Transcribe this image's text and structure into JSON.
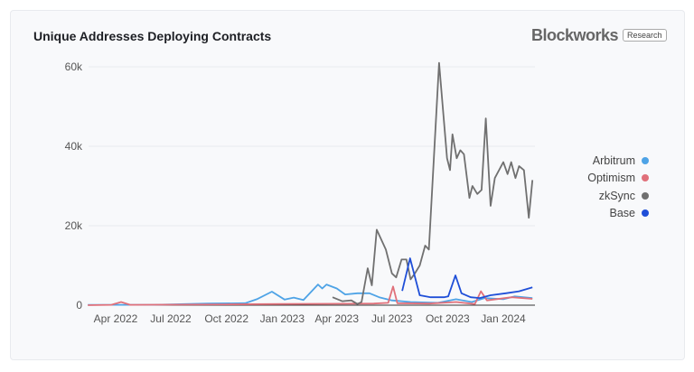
{
  "header": {
    "title": "Unique Addresses Deploying Contracts",
    "logo": "Blockworks",
    "badge": "Research"
  },
  "chart_data": {
    "type": "line",
    "title": "Unique Addresses Deploying Contracts",
    "xlabel": "",
    "ylabel": "",
    "ylim": [
      0,
      60000
    ],
    "yticks": [
      {
        "v": 0,
        "label": "0"
      },
      {
        "v": 20000,
        "label": "20k"
      },
      {
        "v": 40000,
        "label": "40k"
      },
      {
        "v": 60000,
        "label": "60k"
      }
    ],
    "xlim": [
      "2022-02-14",
      "2024-02-20"
    ],
    "xticks": [
      {
        "d": "2022-04-01",
        "label": "Apr 2022"
      },
      {
        "d": "2022-07-01",
        "label": "Jul 2022"
      },
      {
        "d": "2022-10-01",
        "label": "Oct 2022"
      },
      {
        "d": "2023-01-01",
        "label": "Jan 2023"
      },
      {
        "d": "2023-04-01",
        "label": "Apr 2023"
      },
      {
        "d": "2023-07-01",
        "label": "Jul 2023"
      },
      {
        "d": "2023-10-01",
        "label": "Oct 2023"
      },
      {
        "d": "2024-01-01",
        "label": "Jan 2024"
      }
    ],
    "grid": true,
    "legend_position": "right",
    "series": [
      {
        "name": "Arbitrum",
        "color": "#4ea3e6",
        "points": [
          [
            "2022-02-14",
            100
          ],
          [
            "2022-06-01",
            100
          ],
          [
            "2022-09-01",
            400
          ],
          [
            "2022-11-01",
            500
          ],
          [
            "2022-11-20",
            1500
          ],
          [
            "2022-12-15",
            3400
          ],
          [
            "2023-01-05",
            1400
          ],
          [
            "2023-01-20",
            1900
          ],
          [
            "2023-02-05",
            1300
          ],
          [
            "2023-03-01",
            5200
          ],
          [
            "2023-03-08",
            4200
          ],
          [
            "2023-03-15",
            5200
          ],
          [
            "2023-04-01",
            4200
          ],
          [
            "2023-04-15",
            2700
          ],
          [
            "2023-05-05",
            3000
          ],
          [
            "2023-05-25",
            3000
          ],
          [
            "2023-06-10",
            2000
          ],
          [
            "2023-07-01",
            1200
          ],
          [
            "2023-08-01",
            800
          ],
          [
            "2023-09-15",
            600
          ],
          [
            "2023-10-15",
            1500
          ],
          [
            "2023-11-10",
            800
          ],
          [
            "2023-12-01",
            1800
          ],
          [
            "2024-01-01",
            1500
          ],
          [
            "2024-01-20",
            2200
          ],
          [
            "2024-02-18",
            1800
          ]
        ]
      },
      {
        "name": "Optimism",
        "color": "#e0707a",
        "points": [
          [
            "2022-02-14",
            0
          ],
          [
            "2022-03-25",
            100
          ],
          [
            "2022-04-10",
            800
          ],
          [
            "2022-04-25",
            100
          ],
          [
            "2022-10-01",
            200
          ],
          [
            "2023-01-01",
            300
          ],
          [
            "2023-06-01",
            400
          ],
          [
            "2023-06-25",
            600
          ],
          [
            "2023-07-03",
            4700
          ],
          [
            "2023-07-10",
            500
          ],
          [
            "2023-09-01",
            400
          ],
          [
            "2023-10-15",
            800
          ],
          [
            "2023-11-15",
            300
          ],
          [
            "2023-11-25",
            3500
          ],
          [
            "2023-12-05",
            1200
          ],
          [
            "2024-01-15",
            2000
          ],
          [
            "2024-02-18",
            1600
          ]
        ]
      },
      {
        "name": "zkSync",
        "color": "#707070",
        "points": [
          [
            "2023-03-25",
            2000
          ],
          [
            "2023-04-10",
            1000
          ],
          [
            "2023-04-25",
            1200
          ],
          [
            "2023-05-05",
            300
          ],
          [
            "2023-05-12",
            800
          ],
          [
            "2023-05-22",
            9300
          ],
          [
            "2023-05-29",
            5000
          ],
          [
            "2023-06-06",
            19000
          ],
          [
            "2023-06-21",
            14000
          ],
          [
            "2023-07-01",
            8000
          ],
          [
            "2023-07-08",
            7000
          ],
          [
            "2023-07-17",
            11500
          ],
          [
            "2023-07-25",
            11500
          ],
          [
            "2023-08-01",
            6500
          ],
          [
            "2023-08-08",
            8000
          ],
          [
            "2023-08-16",
            10000
          ],
          [
            "2023-08-25",
            15000
          ],
          [
            "2023-08-31",
            14000
          ],
          [
            "2023-09-17",
            61000
          ],
          [
            "2023-09-30",
            37000
          ],
          [
            "2023-10-05",
            34000
          ],
          [
            "2023-10-09",
            43000
          ],
          [
            "2023-10-16",
            37000
          ],
          [
            "2023-10-22",
            39000
          ],
          [
            "2023-10-28",
            38000
          ],
          [
            "2023-11-06",
            27000
          ],
          [
            "2023-11-11",
            30000
          ],
          [
            "2023-11-19",
            28000
          ],
          [
            "2023-11-26",
            29000
          ],
          [
            "2023-12-03",
            47000
          ],
          [
            "2023-12-11",
            25000
          ],
          [
            "2023-12-18",
            32000
          ],
          [
            "2024-01-01",
            36000
          ],
          [
            "2024-01-08",
            33000
          ],
          [
            "2024-01-14",
            36000
          ],
          [
            "2024-01-21",
            32000
          ],
          [
            "2024-01-27",
            35000
          ],
          [
            "2024-02-04",
            34000
          ],
          [
            "2024-02-12",
            22000
          ],
          [
            "2024-02-18",
            31500
          ]
        ]
      },
      {
        "name": "Base",
        "color": "#1f4fd8",
        "points": [
          [
            "2023-07-18",
            3600
          ],
          [
            "2023-07-31",
            11800
          ],
          [
            "2023-08-16",
            2500
          ],
          [
            "2023-09-03",
            2000
          ],
          [
            "2023-09-25",
            2000
          ],
          [
            "2023-10-02",
            2200
          ],
          [
            "2023-10-14",
            7500
          ],
          [
            "2023-10-24",
            3000
          ],
          [
            "2023-11-08",
            2000
          ],
          [
            "2023-11-23",
            1800
          ],
          [
            "2023-12-11",
            2500
          ],
          [
            "2024-01-05",
            3000
          ],
          [
            "2024-01-27",
            3500
          ],
          [
            "2024-02-18",
            4500
          ]
        ]
      }
    ]
  }
}
